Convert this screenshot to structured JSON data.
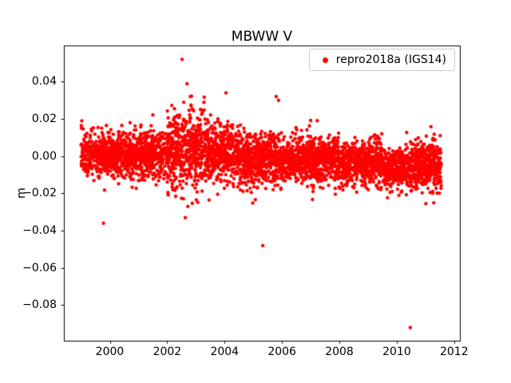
{
  "figure": {
    "background": "#ffffff"
  },
  "chart_data": {
    "type": "scatter",
    "title": "MBWW V",
    "xlabel": "",
    "ylabel": "m",
    "grid": false,
    "marker_color": "#ff0000",
    "xlim": [
      1998.4,
      2012.2
    ],
    "ylim": [
      -0.0992,
      0.0592
    ],
    "xticks": {
      "values": [
        2000,
        2002,
        2004,
        2006,
        2008,
        2010,
        2012
      ],
      "labels": [
        "2000",
        "2002",
        "2004",
        "2006",
        "2008",
        "2010",
        "2012"
      ]
    },
    "yticks": {
      "values": [
        0.04,
        0.02,
        0,
        -0.02,
        -0.04,
        -0.06,
        -0.08
      ],
      "labels": [
        "0.04",
        "0.02",
        "0.00",
        "−0.02",
        "−0.04",
        "−0.06",
        "−0.08"
      ]
    },
    "legend": {
      "position": "upper right",
      "entries": [
        {
          "label": "repro2018a (IGS14)",
          "color": "#ff0000",
          "marker": "circle"
        }
      ]
    },
    "series": [
      {
        "name": "repro2018a (IGS14)",
        "color": "#ff0000",
        "x_range": [
          1999.0,
          2011.55
        ],
        "cluster_segments": [
          {
            "from": 1999.0,
            "to": 2000.0,
            "mean": 0.001,
            "std": 0.006,
            "n": 330
          },
          {
            "from": 2000.0,
            "to": 2002.0,
            "mean": 0.001,
            "std": 0.006,
            "n": 700
          },
          {
            "from": 2002.0,
            "to": 2002.5,
            "mean": 0.003,
            "std": 0.01,
            "n": 180
          },
          {
            "from": 2002.5,
            "to": 2003.3,
            "mean": 0.005,
            "std": 0.011,
            "n": 290
          },
          {
            "from": 2003.3,
            "to": 2004.5,
            "mean": 0.001,
            "std": 0.008,
            "n": 430
          },
          {
            "from": 2004.5,
            "to": 2006.0,
            "mean": -0.002,
            "std": 0.007,
            "n": 540
          },
          {
            "from": 2006.0,
            "to": 2008.0,
            "mean": -0.002,
            "std": 0.006,
            "n": 720
          },
          {
            "from": 2008.0,
            "to": 2009.5,
            "mean": -0.004,
            "std": 0.006,
            "n": 540
          },
          {
            "from": 2009.5,
            "to": 2010.3,
            "mean": -0.007,
            "std": 0.005,
            "n": 290
          },
          {
            "from": 2010.3,
            "to": 2011.55,
            "mean": -0.005,
            "std": 0.006,
            "n": 450
          }
        ],
        "outliers": [
          [
            1999.78,
            -0.036
          ],
          [
            2002.52,
            0.052
          ],
          [
            2002.63,
            -0.033
          ],
          [
            2002.72,
            -0.027
          ],
          [
            2004.05,
            0.034
          ],
          [
            2005.33,
            -0.048
          ],
          [
            2005.8,
            0.032
          ],
          [
            2005.88,
            0.03
          ],
          [
            2010.47,
            -0.092
          ]
        ]
      }
    ],
    "generation": {
      "seed": 7
    }
  }
}
